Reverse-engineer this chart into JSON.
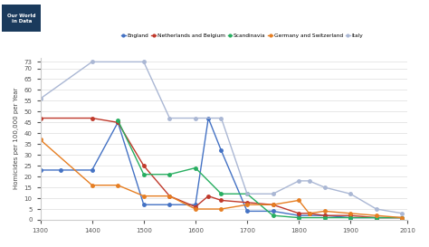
{
  "title": "",
  "ylabel": "Homicides per 100,000 per Year",
  "xlabel": "",
  "xlim": [
    1300,
    2010
  ],
  "ylim": [
    0,
    75
  ],
  "yticks": [
    0,
    5,
    10,
    15,
    20,
    25,
    30,
    35,
    40,
    45,
    50,
    55,
    60,
    65,
    70,
    73
  ],
  "xticks": [
    1300,
    1400,
    1500,
    1600,
    1700,
    1800,
    1900,
    2010
  ],
  "series": [
    {
      "label": "England",
      "color": "#4472c4",
      "x": [
        1300,
        1340,
        1400,
        1450,
        1500,
        1550,
        1600,
        1625,
        1650,
        1700,
        1750,
        1800,
        1850,
        1900,
        1950,
        2000
      ],
      "y": [
        23,
        23,
        23,
        45,
        7,
        7,
        7,
        47,
        32,
        4,
        4,
        2,
        2,
        1,
        1,
        1
      ]
    },
    {
      "label": "Netherlands and Belgium",
      "color": "#c0392b",
      "x": [
        1300,
        1400,
        1450,
        1500,
        1550,
        1600,
        1625,
        1650,
        1700,
        1750,
        1800,
        1820,
        1850,
        1900,
        1950,
        2000
      ],
      "y": [
        47,
        47,
        45,
        25,
        11,
        6,
        11,
        9,
        8,
        7,
        3,
        3,
        2,
        2,
        1,
        1
      ]
    },
    {
      "label": "Scandinavia",
      "color": "#27ae60",
      "x": [
        1450,
        1500,
        1550,
        1600,
        1650,
        1700,
        1750,
        1800,
        1850,
        1900,
        1950,
        2000
      ],
      "y": [
        46,
        21,
        21,
        24,
        12,
        12,
        2,
        1,
        1,
        1,
        1,
        1
      ]
    },
    {
      "label": "Germany and Switzerland",
      "color": "#e67e22",
      "x": [
        1300,
        1400,
        1450,
        1500,
        1550,
        1600,
        1650,
        1700,
        1750,
        1800,
        1820,
        1850,
        1900,
        1950,
        2000
      ],
      "y": [
        37,
        16,
        16,
        11,
        11,
        5,
        5,
        7,
        7,
        9,
        3,
        4,
        3,
        2,
        1
      ]
    },
    {
      "label": "Italy",
      "color": "#aab7d4",
      "x": [
        1300,
        1400,
        1500,
        1550,
        1600,
        1650,
        1700,
        1750,
        1800,
        1820,
        1850,
        1900,
        1950,
        2000
      ],
      "y": [
        56,
        73,
        73,
        47,
        47,
        47,
        12,
        12,
        18,
        18,
        15,
        12,
        5,
        3
      ]
    }
  ],
  "background_color": "#ffffff",
  "grid_color": "#dddddd",
  "logo_text": "Our World\nin Data",
  "logo_bg": "#1a3a5c"
}
